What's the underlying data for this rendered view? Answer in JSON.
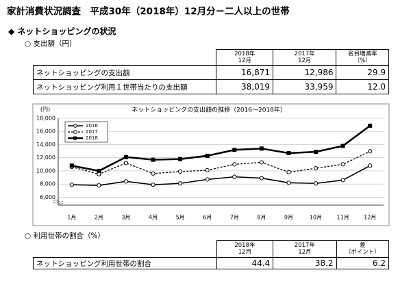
{
  "header": {
    "title": "家計消費状況調査　平成30年（2018年）12月分－二人以上の世帯"
  },
  "section": "◆ ネットショッピングの状況",
  "table1": {
    "caption": "○ 支出額（円）",
    "headers": [
      "2018年\n12月",
      "2017年\n12月",
      "名目増減率\n（%）"
    ],
    "rows": [
      [
        "ネットショッピングの支出額",
        "16,871",
        "12,986",
        "29.9"
      ],
      [
        "ネットショッピング利用１世帯当たりの支出額",
        "38,019",
        "33,959",
        "12.0"
      ]
    ]
  },
  "chart_data": {
    "type": "line",
    "title": "ネットショッピングの支出額の推移（2016～2018年）",
    "y_label": "(円)",
    "categories": [
      "1月",
      "2月",
      "3月",
      "4月",
      "5月",
      "6月",
      "7月",
      "8月",
      "9月",
      "10月",
      "11月",
      "12月"
    ],
    "ylim": [
      4800,
      18000
    ],
    "yticks": [
      {
        "value": 6000,
        "label": "6,000"
      },
      {
        "value": 8000,
        "label": "8,000"
      },
      {
        "value": 10000,
        "label": "10,000"
      },
      {
        "value": 12000,
        "label": "12,000"
      },
      {
        "value": 14000,
        "label": "14,000"
      },
      {
        "value": 16000,
        "label": "16,000"
      },
      {
        "value": 18000,
        "label": "18,000"
      }
    ],
    "grid": true,
    "legend": "top-left",
    "series": [
      {
        "name": "2016",
        "color": "#000000",
        "marker": "circle-open",
        "dashed": false,
        "width": 1.6,
        "values": [
          7900,
          7800,
          8400,
          7900,
          8100,
          8700,
          9100,
          8900,
          8200,
          8100,
          8600,
          10800
        ]
      },
      {
        "name": "2017",
        "color": "#000000",
        "marker": "circle-open",
        "dashed": true,
        "width": 1.3,
        "values": [
          10600,
          9500,
          11200,
          9600,
          9900,
          10100,
          11000,
          11300,
          9800,
          10400,
          11000,
          12986
        ]
      },
      {
        "name": "2018",
        "color": "#000000",
        "marker": "square",
        "dashed": false,
        "width": 2.6,
        "values": [
          10800,
          10000,
          12100,
          11700,
          11800,
          12300,
          13200,
          13400,
          12700,
          12900,
          13800,
          16871
        ]
      }
    ]
  },
  "table2": {
    "caption": "○ 利用世帯の割合（%）",
    "headers": [
      "2018年\n12月",
      "2017年\n12月",
      "差\n（ポイント）"
    ],
    "rows": [
      [
        "ネットショッピング利用世帯の割合",
        "44.4",
        "38.2",
        "6.2"
      ]
    ]
  }
}
